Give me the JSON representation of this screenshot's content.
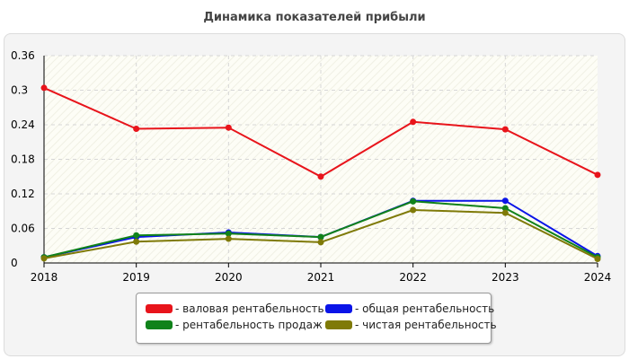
{
  "title": "Динамика показателей прибыли",
  "chart_data": {
    "type": "line",
    "title": "Динамика показателей прибыли",
    "xlabel": "",
    "ylabel": "",
    "x": [
      "2018",
      "2019",
      "2020",
      "2021",
      "2022",
      "2023",
      "2024"
    ],
    "y_ticks": [
      "0",
      "0.06",
      "0.12",
      "0.18",
      "0.24",
      "0.3",
      "0.36"
    ],
    "ylim": [
      0,
      0.36
    ],
    "grid": true,
    "legend_position": "bottom",
    "series": [
      {
        "name": "- валовая рентабельность",
        "color": "#e8141b",
        "values": [
          0.304,
          0.233,
          0.235,
          0.15,
          0.245,
          0.232,
          0.153
        ]
      },
      {
        "name": "- общая рентабельность",
        "color": "#0a14e8",
        "values": [
          0.01,
          0.045,
          0.053,
          0.045,
          0.108,
          0.108,
          0.012
        ]
      },
      {
        "name": "- рентабельность продаж",
        "color": "#10821a",
        "values": [
          0.01,
          0.048,
          0.051,
          0.045,
          0.107,
          0.095,
          0.01
        ]
      },
      {
        "name": "- чистая рентабельность",
        "color": "#7f7a08",
        "values": [
          0.008,
          0.037,
          0.042,
          0.036,
          0.092,
          0.087,
          0.007
        ]
      }
    ]
  }
}
